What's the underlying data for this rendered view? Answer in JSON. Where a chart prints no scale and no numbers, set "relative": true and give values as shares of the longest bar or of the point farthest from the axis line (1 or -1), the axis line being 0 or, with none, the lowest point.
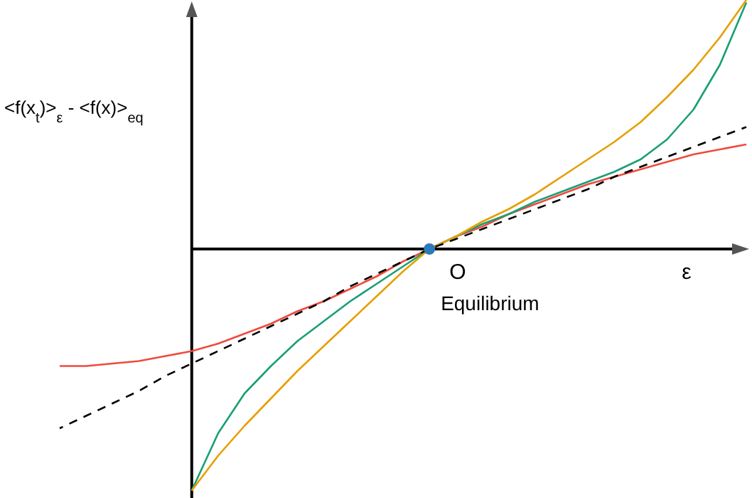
{
  "chart_data": {
    "type": "line",
    "xlabel": "ε",
    "ylabel": "<f(x$_{t}$)>$_{ε}$ - <f(x)>$_{eq}$",
    "relative": true,
    "marker": "none",
    "categories": [
      null,
      null,
      null,
      null,
      null,
      null,
      null,
      null,
      null,
      null,
      null,
      null,
      null,
      null,
      null,
      null,
      null,
      null,
      null,
      null,
      null,
      null,
      null,
      null,
      null,
      null,
      null
    ],
    "annotations": [
      "O",
      "Equilibrium"
    ],
    "series": [
      {
        "color": "#f04a3e",
        "values": [
          -0.47,
          -0.47,
          -0.46,
          -0.45,
          -0.43,
          -0.41,
          -0.38,
          -0.34,
          -0.3,
          -0.25,
          -0.21,
          -0.16,
          -0.11,
          -0.05,
          0,
          0.05,
          0.09,
          0.14,
          0.18,
          0.22,
          0.26,
          0.29,
          0.32,
          0.35,
          0.38,
          0.4,
          0.42
        ]
      },
      {
        "color": "#1a9e77",
        "values": [
          null,
          null,
          null,
          null,
          null,
          -0.97,
          -0.74,
          -0.58,
          -0.47,
          -0.37,
          -0.29,
          -0.21,
          -0.14,
          -0.07,
          0,
          0.05,
          0.1,
          0.14,
          0.19,
          0.23,
          0.27,
          0.31,
          0.36,
          0.44,
          0.56,
          0.74,
          0.99
        ]
      },
      {
        "color": "#e69f00",
        "values": [
          null,
          null,
          null,
          null,
          null,
          -0.97,
          -0.83,
          -0.71,
          -0.6,
          -0.49,
          -0.39,
          -0.29,
          -0.19,
          -0.09,
          0,
          0.05,
          0.11,
          0.16,
          0.22,
          0.29,
          0.36,
          0.43,
          0.51,
          0.61,
          0.72,
          0.85,
          1.0
        ]
      },
      {
        "color": "#000000",
        "line_style": "dashed",
        "values": [
          -0.72,
          -0.67,
          -0.62,
          -0.57,
          -0.51,
          -0.46,
          -0.41,
          -0.36,
          -0.31,
          -0.26,
          -0.21,
          -0.15,
          -0.1,
          -0.05,
          0,
          0.04,
          0.08,
          0.12,
          0.16,
          0.2,
          0.24,
          0.29,
          0.33,
          0.37,
          0.41,
          0.45,
          0.49
        ]
      },
      {
        "color": "#2b7bba",
        "marker": "circle",
        "values": [
          null,
          null,
          null,
          null,
          null,
          null,
          null,
          null,
          null,
          null,
          null,
          null,
          null,
          null,
          0,
          null,
          null,
          null,
          null,
          null,
          null,
          null,
          null,
          null,
          null,
          null,
          null
        ]
      }
    ]
  }
}
